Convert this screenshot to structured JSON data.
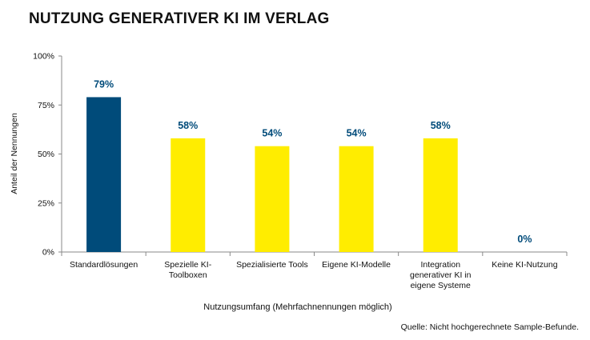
{
  "chart_data": {
    "type": "bar",
    "title": "NUTZUNG GENERATIVER KI IM VERLAG",
    "xlabel": "Nutzungsumfang (Mehrfachnennungen möglich)",
    "ylabel": "Anteil der Nennungen",
    "ylim": [
      0,
      100
    ],
    "yticks": [
      "0%",
      "25%",
      "50%",
      "75%",
      "100%"
    ],
    "ytick_values": [
      0,
      25,
      50,
      75,
      100
    ],
    "categories": [
      [
        "Standardlösungen"
      ],
      [
        "Spezielle KI-",
        "Toolboxen"
      ],
      [
        "Spezialisierte Tools"
      ],
      [
        "Eigene KI-Modelle"
      ],
      [
        "Integration",
        "generativer KI in",
        "eigene Systeme"
      ],
      [
        "Keine KI-Nutzung"
      ]
    ],
    "values": [
      79,
      58,
      54,
      54,
      58,
      0
    ],
    "value_labels": [
      "79%",
      "58%",
      "54%",
      "54%",
      "58%",
      "0%"
    ],
    "bar_colors": [
      "#004b7a",
      "#ffed00",
      "#ffed00",
      "#ffed00",
      "#ffed00",
      "#ffed00"
    ],
    "label_color": "#004b7a",
    "grid": false,
    "source": "Quelle: Nicht hochgerechnete Sample-Befunde."
  }
}
